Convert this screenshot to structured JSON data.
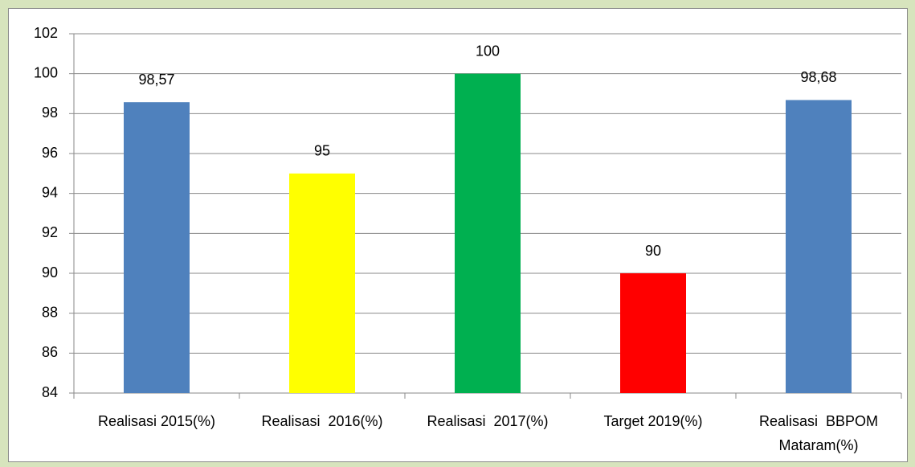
{
  "chart_data": {
    "type": "bar",
    "categories": [
      "Realisasi 2015(%)",
      "Realisasi  2016(%)",
      "Realisasi  2017(%)",
      "Target 2019(%)",
      "Realisasi  BBPOM Mataram(%)"
    ],
    "values": [
      98.57,
      95,
      100,
      90,
      98.68
    ],
    "value_labels": [
      "98,57",
      "95",
      "100",
      "90",
      "98,68"
    ],
    "colors": [
      "#4f81bd",
      "#ffff00",
      "#00b050",
      "#ff0000",
      "#4f81bd"
    ],
    "ylim": [
      84,
      102
    ],
    "yticks": [
      84,
      86,
      88,
      90,
      92,
      94,
      96,
      98,
      100,
      102
    ],
    "grid": true
  }
}
